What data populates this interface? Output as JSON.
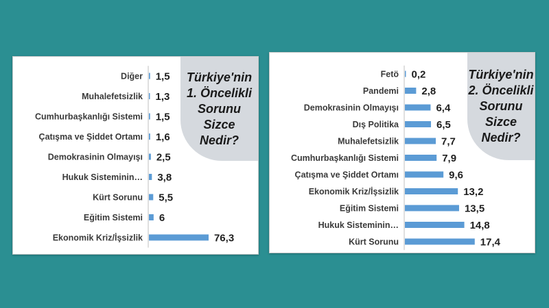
{
  "chart_data": [
    {
      "type": "bar",
      "orientation": "horizontal",
      "title": "Türkiye'nin\n1. Öncelikli\nSorunu\nSizce\nNedir?",
      "categories": [
        "Diğer",
        "Muhalefetsizlik",
        "Cumhurbaşkanlığı Sistemi",
        "Çatışma ve Şiddet Ortamı",
        "Demokrasinin Olmayışı",
        "Hukuk Sisteminin…",
        "Kürt Sorunu",
        "Eğitim Sistemi",
        "Ekonomik Kriz/İşsizlik"
      ],
      "values": [
        1.5,
        1.3,
        1.5,
        1.6,
        2.5,
        3.8,
        5.5,
        6,
        76.3
      ],
      "value_labels": [
        "1,5",
        "1,3",
        "1,5",
        "1,6",
        "2,5",
        "3,8",
        "5,5",
        "6",
        "76,3"
      ],
      "xlim": [
        0,
        100
      ],
      "grid": false,
      "bar_color": "#5b9bd5"
    },
    {
      "type": "bar",
      "orientation": "horizontal",
      "title": "Türkiye'nin\n2. Öncelikli\nSorunu\nSizce\nNedir?",
      "categories": [
        "Fetö",
        "Pandemi",
        "Demokrasinin Olmayışı",
        "Dış Politika",
        "Muhalefetsizlik",
        "Cumhurbaşkanlığı Sistemi",
        "Çatışma ve Şiddet Ortamı",
        "Ekonomik Kriz/İşsizlik",
        "Eğitim Sistemi",
        "Hukuk Sisteminin…",
        "Kürt Sorunu"
      ],
      "values": [
        0.2,
        2.8,
        6.4,
        6.5,
        7.7,
        7.9,
        9.6,
        13.2,
        13.5,
        14.8,
        17.4
      ],
      "value_labels": [
        "0,2",
        "2,8",
        "6,4",
        "6,5",
        "7,7",
        "7,9",
        "9,6",
        "13,2",
        "13,5",
        "14,8",
        "17,4"
      ],
      "xlim": [
        0,
        20
      ],
      "grid": false,
      "bar_color": "#5b9bd5"
    }
  ]
}
